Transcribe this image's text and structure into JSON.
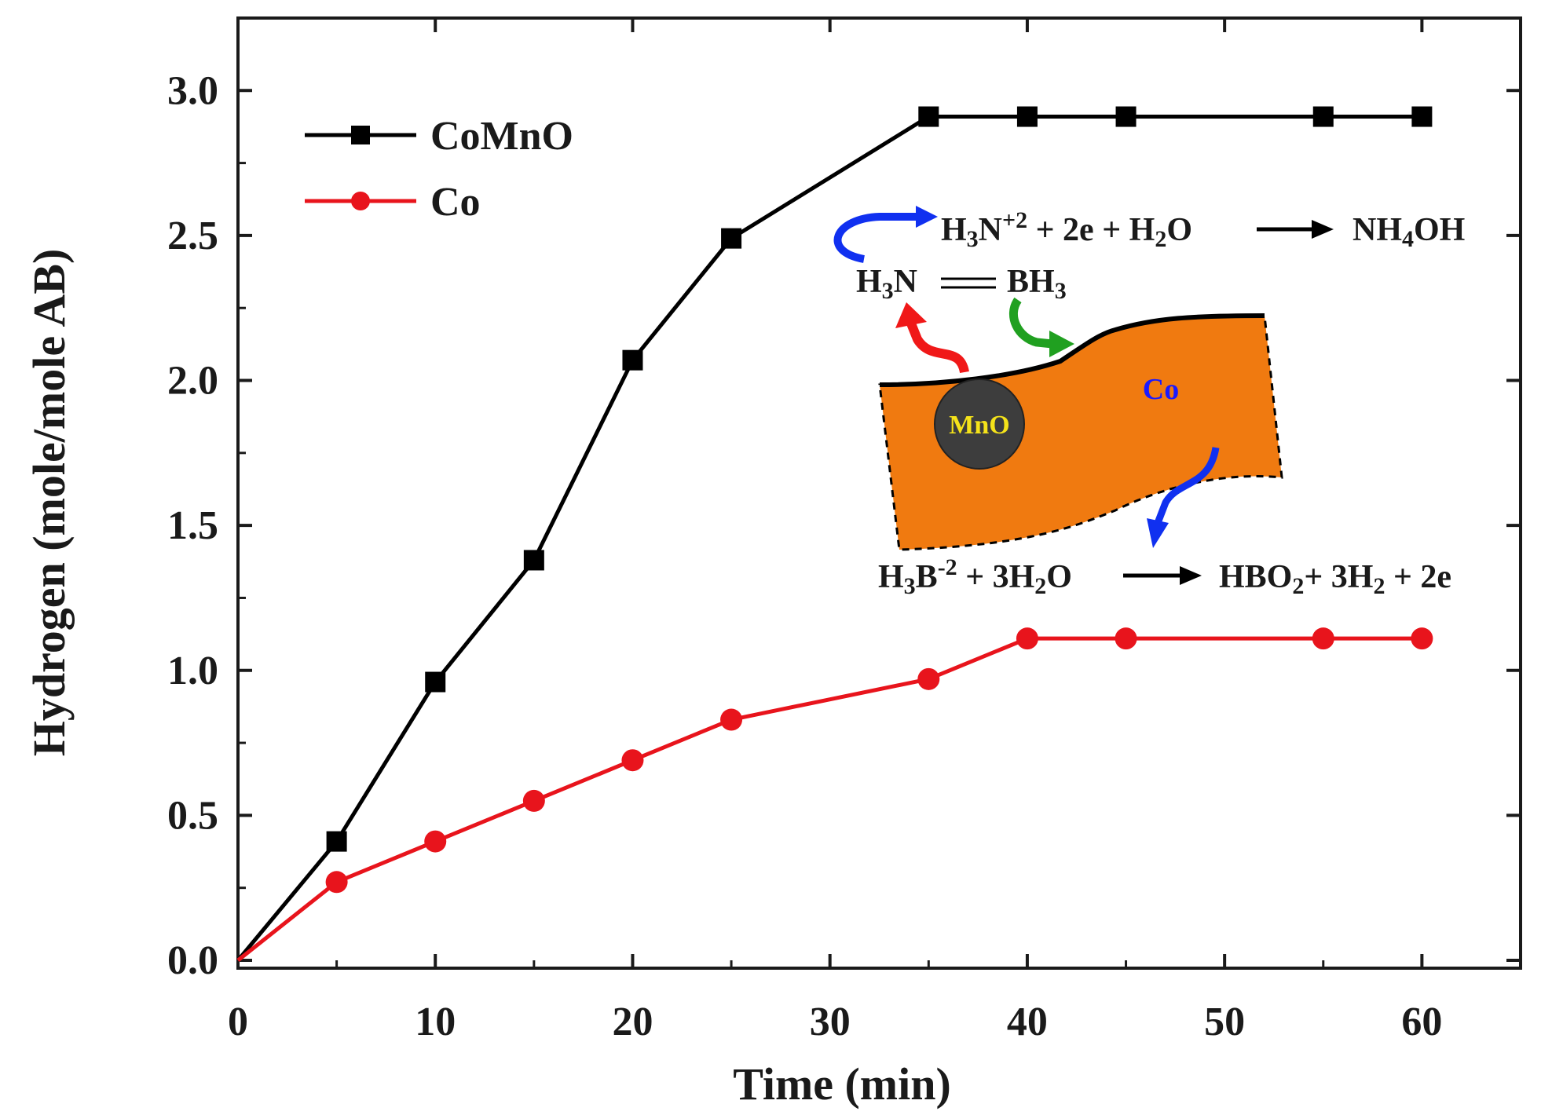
{
  "chart_data": {
    "type": "line",
    "title": "",
    "xlabel": "Time (min)",
    "ylabel": "Hydrogen (mole/mole AB)",
    "xlim": [
      0,
      65
    ],
    "ylim": [
      0,
      3.25
    ],
    "x_ticks": [
      0,
      10,
      20,
      30,
      40,
      50,
      60
    ],
    "x_tick_labels": [
      "0",
      "10",
      "20",
      "30",
      "40",
      "50",
      "60"
    ],
    "y_ticks": [
      0.0,
      0.5,
      1.0,
      1.5,
      2.0,
      2.5,
      3.0
    ],
    "y_tick_labels": [
      "0.0",
      "0.5",
      "1.0",
      "1.5",
      "2.0",
      "2.5",
      "3.0"
    ],
    "legend_position": "top-left",
    "series": [
      {
        "name": "CoMnO",
        "color": "#000000",
        "marker": "square",
        "x": [
          0,
          5,
          10,
          15,
          20,
          25,
          35,
          40,
          45,
          55,
          60
        ],
        "values": [
          0.0,
          0.41,
          0.96,
          1.38,
          2.07,
          2.49,
          2.91,
          2.91,
          2.91,
          2.91,
          2.91
        ]
      },
      {
        "name": "Co",
        "color": "#e8141c",
        "marker": "circle",
        "x": [
          0,
          5,
          10,
          15,
          20,
          25,
          35,
          40,
          45,
          55,
          60
        ],
        "values": [
          0.0,
          0.27,
          0.41,
          0.55,
          0.69,
          0.83,
          0.97,
          1.11,
          1.11,
          1.11,
          1.11
        ]
      }
    ]
  },
  "inset": {
    "equation_top": {
      "parts": [
        {
          "t": "H",
          "s": ""
        },
        {
          "t": "3",
          "s": "sub"
        },
        {
          "t": "N",
          "s": ""
        },
        {
          "t": "+2",
          "s": "sup"
        },
        {
          "t": " + 2e + H",
          "s": ""
        },
        {
          "t": "2",
          "s": "sub"
        },
        {
          "t": "O",
          "s": ""
        }
      ],
      "product_parts": [
        {
          "t": "NH",
          "s": ""
        },
        {
          "t": "4",
          "s": "sub"
        },
        {
          "t": "OH",
          "s": ""
        }
      ]
    },
    "molecule": {
      "left_parts": [
        {
          "t": "H",
          "s": ""
        },
        {
          "t": "3",
          "s": "sub"
        },
        {
          "t": "N",
          "s": ""
        }
      ],
      "right_parts": [
        {
          "t": "BH",
          "s": ""
        },
        {
          "t": "3",
          "s": "sub"
        }
      ]
    },
    "equation_bottom": {
      "parts": [
        {
          "t": "H",
          "s": ""
        },
        {
          "t": "3",
          "s": "sub"
        },
        {
          "t": "B",
          "s": ""
        },
        {
          "t": "-2",
          "s": "sup"
        },
        {
          "t": " + 3H",
          "s": ""
        },
        {
          "t": "2",
          "s": "sub"
        },
        {
          "t": "O",
          "s": ""
        }
      ],
      "product_parts": [
        {
          "t": "HBO",
          "s": ""
        },
        {
          "t": "2",
          "s": "sub"
        },
        {
          "t": "+ 3H",
          "s": ""
        },
        {
          "t": "2",
          "s": "sub"
        },
        {
          "t": " + 2e",
          "s": ""
        }
      ]
    },
    "particle_label": "MnO",
    "support_label": "Co",
    "colors": {
      "support": "#f07a10",
      "particle": "#3d3d3d",
      "particle_text": "#f5e31a",
      "support_text": "#1a1aff",
      "arrow_blue": "#1030f0",
      "arrow_red": "#f01818",
      "arrow_green": "#20a020"
    }
  }
}
